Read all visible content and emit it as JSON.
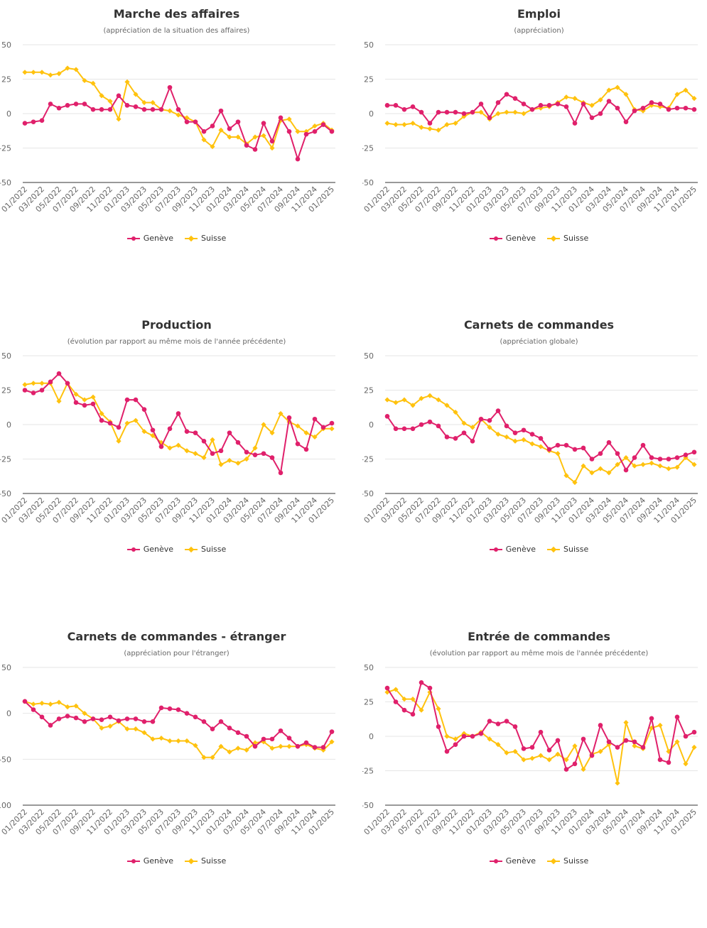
{
  "colors": {
    "geneve": "#e0206b",
    "suisse": "#ffc20e",
    "grid": "#e6e6e6",
    "axis": "#333333",
    "text": "#333333"
  },
  "chart_data": [
    {
      "type": "line",
      "title": "Marche des affaires",
      "subtitle": "(appréciation de la situation des affaires)",
      "ylim": [
        -50,
        50
      ],
      "yticks": [
        50,
        25,
        0,
        -25,
        -50
      ],
      "xtick_labels": [
        "01/2022",
        "03/2022",
        "05/2022",
        "07/2022",
        "09/2022",
        "11/2022",
        "01/2023",
        "03/2023",
        "05/2023",
        "07/2023",
        "09/2023",
        "11/2023",
        "01/2024",
        "03/2024",
        "05/2024",
        "07/2024",
        "09/2024",
        "11/2024",
        "01/2025"
      ],
      "legend": "bottom",
      "series": [
        {
          "name": "Genève",
          "marker": "circle",
          "values": [
            -7,
            -6,
            -5,
            7,
            4,
            6,
            7,
            7,
            3,
            3,
            3,
            13,
            6,
            5,
            3,
            3,
            3,
            19,
            3,
            -6,
            -6,
            -13,
            -9,
            2,
            -11,
            -6,
            -23,
            -26,
            -7,
            -20,
            -3,
            -13,
            -33,
            -15,
            -13,
            -8,
            -13
          ]
        },
        {
          "name": "Suisse",
          "marker": "diamond",
          "values": [
            30,
            30,
            30,
            28,
            29,
            33,
            32,
            24,
            22,
            13,
            9,
            -4,
            23,
            14,
            8,
            8,
            3,
            2,
            -1,
            -3,
            -6,
            -19,
            -24,
            -12,
            -17,
            -17,
            -22,
            -17,
            -16,
            -25,
            -5,
            -4,
            -13,
            -13,
            -9,
            -7,
            -12
          ]
        }
      ]
    },
    {
      "type": "line",
      "title": "Emploi",
      "subtitle": "(appréciation)",
      "ylim": [
        -50,
        50
      ],
      "yticks": [
        50,
        25,
        0,
        -25,
        -50
      ],
      "xtick_labels": [
        "01/2022",
        "03/2022",
        "05/2022",
        "07/2022",
        "09/2022",
        "11/2022",
        "01/2023",
        "03/2023",
        "05/2023",
        "07/2023",
        "09/2023",
        "11/2023",
        "01/2024",
        "03/2024",
        "05/2024",
        "07/2024",
        "09/2024",
        "11/2024",
        "01/2025"
      ],
      "legend": "bottom",
      "series": [
        {
          "name": "Genève",
          "marker": "circle",
          "values": [
            6,
            6,
            3,
            5,
            1,
            -7,
            1,
            1,
            1,
            0,
            1,
            7,
            -3,
            8,
            14,
            11,
            7,
            3,
            6,
            6,
            7,
            5,
            -7,
            7,
            -3,
            0,
            9,
            4,
            -6,
            2,
            4,
            8,
            7,
            3,
            4,
            4,
            3
          ]
        },
        {
          "name": "Suisse",
          "marker": "diamond",
          "values": [
            -7,
            -8,
            -8,
            -7,
            -10,
            -11,
            -12,
            -8,
            -7,
            -2,
            1,
            1,
            -4,
            0,
            1,
            1,
            0,
            3,
            4,
            5,
            8,
            12,
            11,
            8,
            6,
            10,
            17,
            19,
            14,
            3,
            2,
            6,
            5,
            4,
            14,
            17,
            11
          ]
        }
      ]
    },
    {
      "type": "line",
      "title": "Production",
      "subtitle": "(évolution par rapport au même mois de l'année précédente)",
      "ylim": [
        -50,
        50
      ],
      "yticks": [
        50,
        25,
        0,
        -25,
        -50
      ],
      "xtick_labels": [
        "01/2022",
        "03/2022",
        "05/2022",
        "07/2022",
        "09/2022",
        "11/2022",
        "01/2023",
        "03/2023",
        "05/2023",
        "07/2023",
        "09/2023",
        "11/2023",
        "01/2024",
        "03/2024",
        "05/2024",
        "07/2024",
        "09/2024",
        "11/2024",
        "01/2025"
      ],
      "legend": "bottom",
      "series": [
        {
          "name": "Genève",
          "marker": "circle",
          "values": [
            25,
            23,
            25,
            31,
            37,
            30,
            16,
            14,
            15,
            3,
            1,
            -2,
            18,
            18,
            11,
            -4,
            -16,
            -3,
            8,
            -5,
            -6,
            -12,
            -21,
            -19,
            -6,
            -13,
            -20,
            -22,
            -21,
            -24,
            -35,
            5,
            -14,
            -18,
            4,
            -2,
            1
          ]
        },
        {
          "name": "Suisse",
          "marker": "diamond",
          "values": [
            29,
            30,
            30,
            30,
            17,
            30,
            22,
            18,
            20,
            8,
            2,
            -12,
            1,
            3,
            -5,
            -8,
            -13,
            -17,
            -15,
            -19,
            -21,
            -24,
            -11,
            -29,
            -26,
            -28,
            -25,
            -17,
            0,
            -6,
            8,
            2,
            -1,
            -6,
            -9,
            -3,
            -3
          ]
        }
      ]
    },
    {
      "type": "line",
      "title": "Carnets de commandes",
      "subtitle": "(appréciation globale)",
      "ylim": [
        -50,
        50
      ],
      "yticks": [
        50,
        25,
        0,
        -25,
        -50
      ],
      "xtick_labels": [
        "01/2022",
        "03/2022",
        "05/2022",
        "07/2022",
        "09/2022",
        "11/2022",
        "01/2023",
        "03/2023",
        "05/2023",
        "07/2023",
        "09/2023",
        "11/2023",
        "01/2024",
        "03/2024",
        "05/2024",
        "07/2024",
        "09/2024",
        "11/2024",
        "01/2025"
      ],
      "legend": "bottom",
      "series": [
        {
          "name": "Genève",
          "marker": "circle",
          "values": [
            6,
            -3,
            -3,
            -3,
            0,
            2,
            -1,
            -9,
            -10,
            -6,
            -12,
            4,
            3,
            10,
            -1,
            -6,
            -4,
            -7,
            -10,
            -18,
            -15,
            -15,
            -18,
            -17,
            -25,
            -21,
            -13,
            -21,
            -33,
            -24,
            -15,
            -24,
            -25,
            -25,
            -24,
            -22,
            -20
          ]
        },
        {
          "name": "Suisse",
          "marker": "diamond",
          "values": [
            18,
            16,
            18,
            14,
            19,
            21,
            18,
            14,
            9,
            1,
            -2,
            4,
            -2,
            -7,
            -9,
            -12,
            -11,
            -14,
            -16,
            -19,
            -21,
            -37,
            -42,
            -30,
            -35,
            -32,
            -35,
            -29,
            -24,
            -30,
            -29,
            -28,
            -30,
            -32,
            -31,
            -24,
            -29
          ]
        }
      ]
    },
    {
      "type": "line",
      "title": "Carnets de commandes - étranger",
      "subtitle": "(appréciation pour l'étranger)",
      "ylim": [
        -100,
        50
      ],
      "yticks": [
        50,
        0,
        -50,
        -100
      ],
      "xtick_labels": [
        "01/2022",
        "03/2022",
        "05/2022",
        "07/2022",
        "09/2022",
        "11/2022",
        "01/2023",
        "03/2023",
        "05/2023",
        "07/2023",
        "09/2023",
        "11/2023",
        "01/2024",
        "03/2024",
        "05/2024",
        "07/2024",
        "09/2024",
        "11/2024",
        "01/2025"
      ],
      "legend": "bottom",
      "series": [
        {
          "name": "Genève",
          "marker": "circle",
          "values": [
            13,
            4,
            -4,
            -13,
            -6,
            -3,
            -5,
            -9,
            -6,
            -7,
            -4,
            -8,
            -6,
            -6,
            -9,
            -9,
            6,
            5,
            4,
            0,
            -4,
            -9,
            -17,
            -9,
            -16,
            -21,
            -25,
            -36,
            -28,
            -28,
            -19,
            -27,
            -36,
            -32,
            -37,
            -37,
            -20
          ]
        },
        {
          "name": "Suisse",
          "marker": "diamond",
          "values": [
            13,
            10,
            11,
            10,
            12,
            7,
            8,
            0,
            -6,
            -16,
            -14,
            -9,
            -17,
            -17,
            -21,
            -28,
            -27,
            -30,
            -30,
            -30,
            -35,
            -48,
            -48,
            -36,
            -42,
            -38,
            -40,
            -32,
            -31,
            -38,
            -36,
            -36,
            -36,
            -34,
            -38,
            -40,
            -31
          ]
        }
      ]
    },
    {
      "type": "line",
      "title": "Entrée de commandes",
      "subtitle": "(évolution par rapport au même mois de l'année précédente)",
      "ylim": [
        -50,
        50
      ],
      "yticks": [
        50,
        25,
        0,
        -25,
        -50
      ],
      "xtick_labels": [
        "01/2022",
        "03/2022",
        "05/2022",
        "07/2022",
        "09/2022",
        "11/2022",
        "01/2023",
        "03/2023",
        "05/2023",
        "07/2023",
        "09/2023",
        "11/2023",
        "01/2024",
        "03/2024",
        "05/2024",
        "07/2024",
        "09/2024",
        "11/2024",
        "01/2025"
      ],
      "legend": "bottom",
      "series": [
        {
          "name": "Genève",
          "marker": "circle",
          "values": [
            35,
            25,
            19,
            16,
            39,
            35,
            7,
            -11,
            -6,
            0,
            0,
            2,
            11,
            9,
            11,
            7,
            -9,
            -8,
            3,
            -10,
            -3,
            -24,
            -20,
            -2,
            -14,
            8,
            -4,
            -8,
            -3,
            -4,
            -8,
            13,
            -17,
            -19,
            14,
            0,
            3
          ]
        },
        {
          "name": "Suisse",
          "marker": "diamond",
          "values": [
            32,
            34,
            27,
            27,
            19,
            32,
            20,
            0,
            -2,
            2,
            0,
            3,
            -2,
            -6,
            -12,
            -11,
            -17,
            -16,
            -14,
            -17,
            -13,
            -17,
            -7,
            -24,
            -13,
            -11,
            -6,
            -34,
            10,
            -7,
            -9,
            6,
            8,
            -11,
            -4,
            -20,
            -8
          ]
        }
      ]
    }
  ]
}
